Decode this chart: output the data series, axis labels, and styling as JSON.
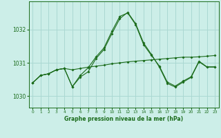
{
  "title": "Graphe pression niveau de la mer (hPa)",
  "bg_color": "#cceee8",
  "grid_color": "#aad8d2",
  "line_color": "#1a6b1a",
  "xlim": [
    -0.5,
    23.5
  ],
  "ylim": [
    1029.65,
    1032.85
  ],
  "yticks": [
    1030,
    1031,
    1032
  ],
  "xticks": [
    0,
    1,
    2,
    3,
    4,
    5,
    6,
    7,
    8,
    9,
    10,
    11,
    12,
    13,
    14,
    15,
    16,
    17,
    18,
    19,
    20,
    21,
    22,
    23
  ],
  "series1": {
    "x": [
      0,
      1,
      2,
      3,
      4,
      5,
      6,
      7,
      8,
      9,
      10,
      11,
      12,
      13,
      14,
      15,
      16,
      17,
      18,
      19,
      20,
      21,
      22,
      23
    ],
    "y": [
      1030.4,
      1030.62,
      1030.67,
      1030.79,
      1030.83,
      1030.79,
      1030.83,
      1030.87,
      1030.9,
      1030.93,
      1030.97,
      1031.0,
      1031.03,
      1031.05,
      1031.07,
      1031.09,
      1031.11,
      1031.13,
      1031.15,
      1031.17,
      1031.17,
      1031.18,
      1031.2,
      1031.22
    ]
  },
  "series2": {
    "x": [
      0,
      1,
      2,
      3,
      4,
      5,
      6,
      7,
      8,
      9,
      10,
      11,
      12,
      13,
      14,
      15,
      16,
      17,
      18,
      19,
      20,
      21,
      22,
      23
    ],
    "y": [
      1030.4,
      1030.62,
      1030.67,
      1030.79,
      1030.83,
      1030.28,
      1030.62,
      1030.85,
      1031.18,
      1031.45,
      1031.95,
      1032.4,
      1032.5,
      1032.15,
      1031.55,
      1031.22,
      1030.9,
      1030.42,
      1030.3,
      1030.45,
      1030.58,
      1031.05,
      1030.88,
      1030.88
    ]
  },
  "series3": {
    "x": [
      0,
      1,
      2,
      3,
      4,
      5,
      6,
      7,
      8,
      9,
      10,
      11,
      12,
      13,
      14,
      15,
      16,
      17,
      18,
      19,
      20,
      21,
      22,
      23
    ],
    "y": [
      1030.4,
      1030.62,
      1030.67,
      1030.79,
      1030.83,
      1030.28,
      1030.57,
      1030.73,
      1031.13,
      1031.4,
      1031.88,
      1032.33,
      1032.52,
      1032.18,
      1031.6,
      1031.25,
      1030.87,
      1030.38,
      1030.27,
      1030.42,
      1030.56,
      1031.03,
      1030.87,
      1030.87
    ]
  }
}
